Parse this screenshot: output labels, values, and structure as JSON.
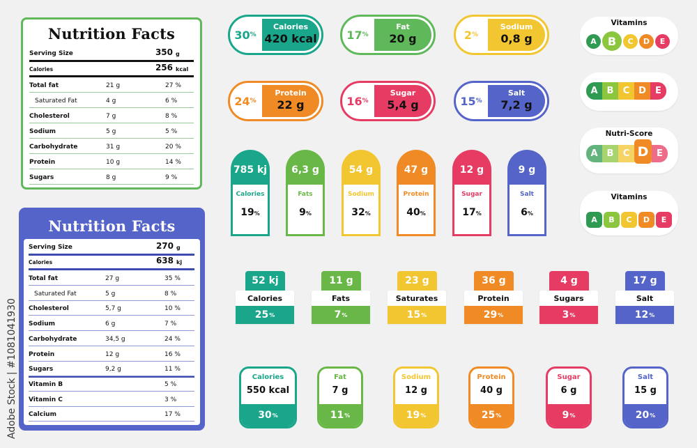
{
  "colors": {
    "green": "#5fb85a",
    "blue": "#5464c8",
    "teal": "#1aa68a",
    "lime": "#69b847",
    "yellow": "#f2c631",
    "orange": "#f08a24",
    "red": "#e63b63",
    "darkgreen": "#2f9a52"
  },
  "table_green": {
    "title": "Nutrition Facts",
    "serving_label": "Serving Size",
    "serving_value": "350",
    "serving_unit": "g",
    "calories_label": "Calories",
    "calories_value": "256",
    "calories_unit": "kcal",
    "rows": [
      {
        "name": "Total fat",
        "amount": "21 g",
        "pct": "27 %"
      },
      {
        "name": "Saturated Fat",
        "amount": "4 g",
        "pct": "6 %"
      },
      {
        "name": "Cholesterol",
        "amount": "7 g",
        "pct": "8 %"
      },
      {
        "name": "Sodium",
        "amount": "5 g",
        "pct": "5 %"
      },
      {
        "name": "Carbohydrate",
        "amount": "31 g",
        "pct": "20 %"
      },
      {
        "name": "Protein",
        "amount": "10 g",
        "pct": "14 %"
      },
      {
        "name": "Sugars",
        "amount": "8 g",
        "pct": "9 %"
      }
    ]
  },
  "table_blue": {
    "title": "Nutrition Facts",
    "serving_label": "Serving Size",
    "serving_value": "270",
    "serving_unit": "g",
    "calories_label": "Calories",
    "calories_value": "638",
    "calories_unit": "kj",
    "rows": [
      {
        "name": "Total fat",
        "amount": "27 g",
        "pct": "35 %"
      },
      {
        "name": "Saturated Fat",
        "amount": "5 g",
        "pct": "8 %"
      },
      {
        "name": "Cholesterol",
        "amount": "5,7 g",
        "pct": "10 %"
      },
      {
        "name": "Sodium",
        "amount": "6 g",
        "pct": "7 %"
      },
      {
        "name": "Carbohydrate",
        "amount": "34,5 g",
        "pct": "24 %"
      },
      {
        "name": "Protein",
        "amount": "12 g",
        "pct": "16 %"
      },
      {
        "name": "Sugars",
        "amount": "9,2 g",
        "pct": "11 %"
      },
      {
        "name": "Vitamin B",
        "amount": "",
        "pct": "5 %"
      },
      {
        "name": "Vitamin C",
        "amount": "",
        "pct": "3 %"
      },
      {
        "name": "Calcium",
        "amount": "",
        "pct": "17 %"
      }
    ]
  },
  "pills": [
    {
      "pct": "30",
      "name": "Calories",
      "value": "420 kcal",
      "color": "#1aa68a"
    },
    {
      "pct": "17",
      "name": "Fat",
      "value": "20 g",
      "color": "#5fb85a"
    },
    {
      "pct": "2",
      "name": "Sodium",
      "value": "0,8 g",
      "color": "#f2c631"
    },
    {
      "pct": "24",
      "name": "Protein",
      "value": "22 g",
      "color": "#f08a24"
    },
    {
      "pct": "16",
      "name": "Sugar",
      "value": "5,4 g",
      "color": "#e63b63"
    },
    {
      "pct": "15",
      "name": "Salt",
      "value": "7,2 g",
      "color": "#5464c8"
    }
  ],
  "percent_symbol": "%",
  "badges": {
    "vitamins_title": "Vitamins",
    "nutriscore_title": "Nutri-Score",
    "letters": [
      "A",
      "B",
      "C",
      "D",
      "E"
    ],
    "letter_colors": [
      "#2f9a52",
      "#8cc63f",
      "#f2c631",
      "#f08a24",
      "#e63b63"
    ]
  },
  "arches": [
    {
      "value": "785 kj",
      "name": "Calories",
      "pct": "19",
      "color": "#1aa68a"
    },
    {
      "value": "6,3 g",
      "name": "Fats",
      "pct": "9",
      "color": "#69b847"
    },
    {
      "value": "54 g",
      "name": "Sodium",
      "pct": "32",
      "color": "#f2c631"
    },
    {
      "value": "47 g",
      "name": "Protein",
      "pct": "40",
      "color": "#f08a24"
    },
    {
      "value": "12 g",
      "name": "Sugar",
      "pct": "17",
      "color": "#e63b63"
    },
    {
      "value": "9 g",
      "name": "Salt",
      "pct": "6",
      "color": "#5464c8"
    }
  ],
  "tabs": [
    {
      "value": "52 kj",
      "name": "Calories",
      "pct": "25",
      "color": "#1aa68a"
    },
    {
      "value": "11 g",
      "name": "Fats",
      "pct": "7",
      "color": "#69b847"
    },
    {
      "value": "23 g",
      "name": "Saturates",
      "pct": "15",
      "color": "#f2c631"
    },
    {
      "value": "36 g",
      "name": "Protein",
      "pct": "29",
      "color": "#f08a24"
    },
    {
      "value": "4 g",
      "name": "Sugars",
      "pct": "3",
      "color": "#e63b63"
    },
    {
      "value": "17 g",
      "name": "Salt",
      "pct": "12",
      "color": "#5464c8"
    }
  ],
  "cards": [
    {
      "name": "Calories",
      "value": "550 kcal",
      "pct": "30",
      "color": "#1aa68a"
    },
    {
      "name": "Fat",
      "value": "7 g",
      "pct": "11",
      "color": "#69b847"
    },
    {
      "name": "Sodium",
      "value": "12 g",
      "pct": "19",
      "color": "#f2c631"
    },
    {
      "name": "Protein",
      "value": "40 g",
      "pct": "25",
      "color": "#f08a24"
    },
    {
      "name": "Sugar",
      "value": "6 g",
      "pct": "9",
      "color": "#e63b63"
    },
    {
      "name": "Salt",
      "value": "15 g",
      "pct": "20",
      "color": "#5464c8"
    }
  ],
  "watermark": "Adobe Stock | #1081041930"
}
